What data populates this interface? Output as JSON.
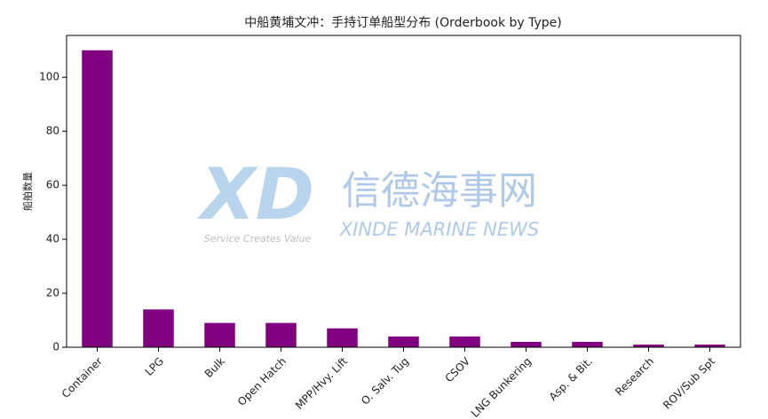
{
  "chart_data": {
    "type": "bar",
    "title": "中船黄埔文冲：手持订单船型分布 (Orderbook by Type)",
    "y_label": "船舶数量",
    "categories": [
      "Container",
      "LPG",
      "Bulk",
      "Open Hatch",
      "MPP/Hvy. Lift",
      "O. Salv. Tug",
      "CSOV",
      "LNG Bunkering",
      "Asp. & Bit.",
      "Research",
      "ROV/Sub Spt"
    ],
    "values": [
      110,
      14,
      9,
      9,
      7,
      4,
      4,
      2,
      2,
      1,
      1
    ],
    "color": "#800080",
    "ylim": [
      0,
      115.5
    ],
    "yticks": [
      0,
      20,
      40,
      60,
      80,
      100
    ],
    "grid": false,
    "watermark": {
      "logo": "XD",
      "name": "信德海事网",
      "name_en": "XINDE MARINE NEWS",
      "slogan": "Service Creates Value"
    }
  }
}
